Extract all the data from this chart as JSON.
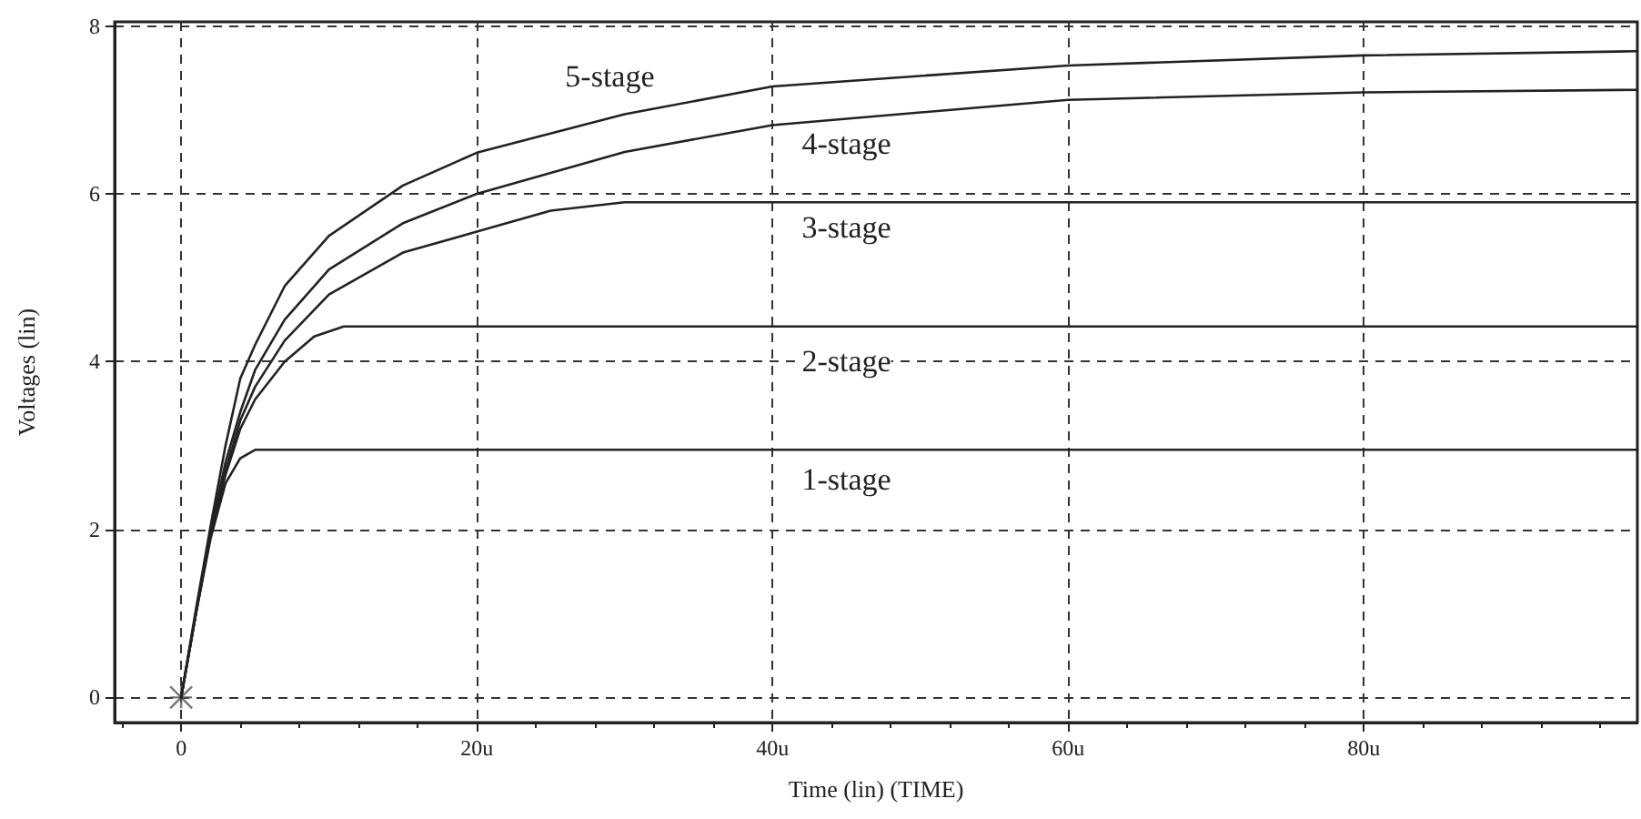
{
  "chart_data": {
    "type": "line",
    "xlabel": "Time (lin) (TIME)",
    "ylabel": "Voltages (lin)",
    "xlim": [
      -4.5,
      98.5
    ],
    "ylim": [
      -0.3,
      8.05
    ],
    "xticks": [
      0,
      {
        "value": 20,
        "label": "20u"
      },
      {
        "value": 40,
        "label": "40u"
      },
      {
        "value": 60,
        "label": "60u"
      },
      {
        "value": 80,
        "label": "80u"
      }
    ],
    "yticks": [
      0,
      2,
      4,
      6,
      8
    ],
    "grid": true,
    "marker": "none",
    "line_style": "solid",
    "series": [
      {
        "name": "1-stage",
        "color": "#222222",
        "x": [
          0,
          1,
          2,
          3,
          4,
          5,
          98.5
        ],
        "values": [
          0,
          1.0,
          1.9,
          2.55,
          2.85,
          2.95,
          2.95
        ]
      },
      {
        "name": "2-stage",
        "color": "#222222",
        "x": [
          0,
          1,
          2,
          3,
          4,
          5,
          7,
          9,
          11,
          98.5
        ],
        "values": [
          0,
          1.0,
          1.95,
          2.65,
          3.2,
          3.55,
          4.0,
          4.3,
          4.42,
          4.42
        ]
      },
      {
        "name": "3-stage",
        "color": "#222222",
        "x": [
          0,
          1,
          2,
          3,
          4,
          5,
          7,
          10,
          15,
          20,
          25,
          30,
          98.5
        ],
        "values": [
          0,
          1.0,
          1.95,
          2.7,
          3.3,
          3.7,
          4.25,
          4.8,
          5.3,
          5.55,
          5.8,
          5.9,
          5.9
        ]
      },
      {
        "name": "4-stage",
        "color": "#222222",
        "x": [
          0,
          1,
          2,
          3,
          4,
          5,
          7,
          10,
          15,
          20,
          30,
          40,
          60,
          80,
          98.5
        ],
        "values": [
          0,
          1.0,
          2.0,
          2.8,
          3.4,
          3.9,
          4.5,
          5.1,
          5.65,
          6.0,
          6.5,
          6.82,
          7.12,
          7.21,
          7.24
        ]
      },
      {
        "name": "5-stage",
        "color": "#222222",
        "x": [
          0,
          1,
          2,
          3,
          4,
          5,
          7,
          10,
          15,
          20,
          30,
          40,
          60,
          80,
          98.5
        ],
        "values": [
          0,
          1.05,
          2.05,
          3.0,
          3.8,
          4.2,
          4.9,
          5.5,
          6.1,
          6.49,
          6.95,
          7.28,
          7.53,
          7.65,
          7.7
        ]
      },
      {
        "type": "scatter",
        "marker": "cross",
        "color": "#555555",
        "x": [
          0
        ],
        "values": [
          0
        ]
      }
    ]
  }
}
